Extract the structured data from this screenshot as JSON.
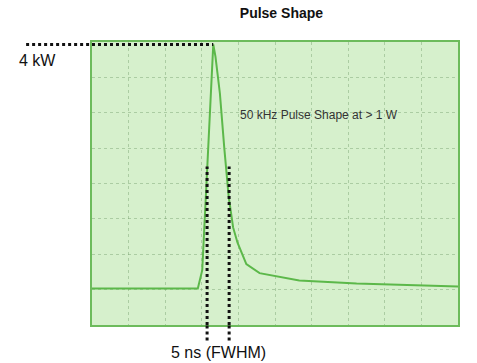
{
  "chart_data": {
    "type": "line",
    "title": "Pulse Shape",
    "x": [
      0,
      24,
      25,
      26,
      27,
      27.5,
      28,
      29,
      30,
      31,
      32,
      33,
      35,
      38,
      47,
      60,
      83
    ],
    "values": [
      0,
      0,
      0.3,
      1.8,
      3.5,
      4.0,
      3.8,
      3.2,
      2.3,
      1.5,
      1.0,
      0.75,
      0.4,
      0.25,
      0.13,
      0.08,
      0.03
    ],
    "color": "#5cb84a",
    "line_style": "solid",
    "xlim": [
      0,
      83
    ],
    "ylim": [
      -0.6,
      4.04
    ],
    "xticks": [
      0,
      8.3,
      16.6,
      24.9,
      33.2,
      41.5,
      49.8,
      58.1,
      66.4,
      74.7,
      83
    ],
    "yticks": [
      -0.6,
      -0.02,
      0.56,
      1.14,
      1.72,
      2.3,
      2.88,
      3.46,
      4.04
    ],
    "grid": true,
    "tick_labels": false,
    "annotations": [
      {
        "text": "50 kHz Pulse Shape at > 1 W",
        "x": 33.2,
        "y": 2.85
      }
    ],
    "peak": {
      "x": 27.5,
      "value": 4,
      "label": "4 kW"
    },
    "fwhm": {
      "start": 26.1,
      "end": 31.1,
      "level": 2,
      "label": "5 ns (FWHM)"
    }
  }
}
